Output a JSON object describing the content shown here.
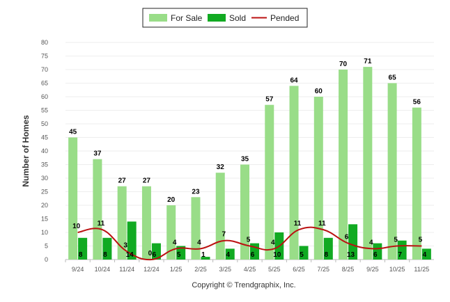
{
  "chart_data": {
    "type": "bar",
    "title": "",
    "xlabel": "",
    "ylabel": "Number of Homes",
    "ylim": [
      0,
      80
    ],
    "yticks": [
      0,
      5,
      10,
      15,
      20,
      25,
      30,
      35,
      40,
      45,
      50,
      55,
      60,
      65,
      70,
      75,
      80
    ],
    "grid": true,
    "legend_position": "top-center",
    "categories": [
      "9/24",
      "10/24",
      "11/24",
      "12/24",
      "1/25",
      "2/25",
      "3/25",
      "4/25",
      "5/25",
      "6/25",
      "7/25",
      "8/25",
      "9/25",
      "10/25",
      "11/25"
    ],
    "series": [
      {
        "name": "For Sale",
        "kind": "bar",
        "color": "#99dd88",
        "values": [
          45,
          37,
          27,
          27,
          20,
          23,
          32,
          35,
          57,
          64,
          60,
          70,
          71,
          65,
          56
        ]
      },
      {
        "name": "Sold",
        "kind": "bar",
        "color": "#11aa22",
        "values": [
          8,
          8,
          14,
          6,
          5,
          1,
          4,
          6,
          10,
          5,
          8,
          13,
          6,
          7,
          4
        ]
      },
      {
        "name": "Pended",
        "kind": "line",
        "color": "#bb1111",
        "values": [
          10,
          11,
          3,
          0,
          4,
          4,
          7,
          5,
          4,
          11,
          11,
          6,
          4,
          5,
          5
        ]
      }
    ],
    "footer": "Copyright © Trendgraphix, Inc."
  }
}
